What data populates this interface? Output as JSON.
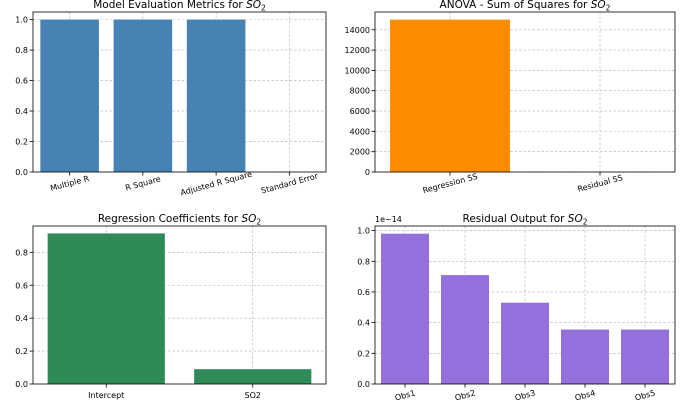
{
  "chart_data": [
    {
      "type": "bar",
      "title_main": "Model Evaluation Metrics for ",
      "title_var": "SO",
      "title_sub": "2",
      "categories": [
        "Multiple R",
        "R Square",
        "Adjusted R Square",
        "Standard Error"
      ],
      "values": [
        1.0,
        1.0,
        1.0,
        0.0
      ],
      "color": "#4682b4",
      "ylim": [
        0,
        1.05
      ],
      "yticks": [
        0.0,
        0.2,
        0.4,
        0.6,
        0.8,
        1.0
      ],
      "ytick_labels": [
        "0.0",
        "0.2",
        "0.4",
        "0.6",
        "0.8",
        "1.0"
      ],
      "x_rotation": -15,
      "grid": true
    },
    {
      "type": "bar",
      "title_main": "ANOVA - Sum of Squares for ",
      "title_var": "SO",
      "title_sub": "2",
      "categories": [
        "Regression SS",
        "Residual SS"
      ],
      "values": [
        15000,
        0
      ],
      "color": "#ff8c00",
      "ylim": [
        0,
        15750
      ],
      "yticks": [
        0,
        2000,
        4000,
        6000,
        8000,
        10000,
        12000,
        14000
      ],
      "ytick_labels": [
        "0",
        "2000",
        "4000",
        "6000",
        "8000",
        "10000",
        "12000",
        "14000"
      ],
      "x_rotation": -15,
      "grid": true
    },
    {
      "type": "bar",
      "title_main": "Regression Coefficients for ",
      "title_var": "SO",
      "title_sub": "2",
      "categories": [
        "Intercept",
        "SO2"
      ],
      "values": [
        0.915,
        0.09
      ],
      "color": "#2e8b57",
      "ylim": [
        0,
        0.96
      ],
      "yticks": [
        0.0,
        0.2,
        0.4,
        0.6,
        0.8
      ],
      "ytick_labels": [
        "0.0",
        "0.2",
        "0.4",
        "0.6",
        "0.8"
      ],
      "x_rotation": 0,
      "grid": true
    },
    {
      "type": "bar",
      "title_main": "Residual Output  for ",
      "title_var": "SO",
      "title_sub": "2",
      "categories": [
        "Obs1",
        "Obs2",
        "Obs3",
        "Obs4",
        "Obs5"
      ],
      "values": [
        0.98,
        0.71,
        0.53,
        0.355,
        0.355
      ],
      "color": "#9370db",
      "ylim": [
        0,
        1.03
      ],
      "yticks": [
        0.0,
        0.2,
        0.4,
        0.6,
        0.8,
        1.0
      ],
      "ytick_labels": [
        "0.0",
        "0.2",
        "0.4",
        "0.6",
        "0.8",
        "1.0"
      ],
      "offset_label": "1e−14",
      "x_rotation": -15,
      "grid": true
    }
  ]
}
